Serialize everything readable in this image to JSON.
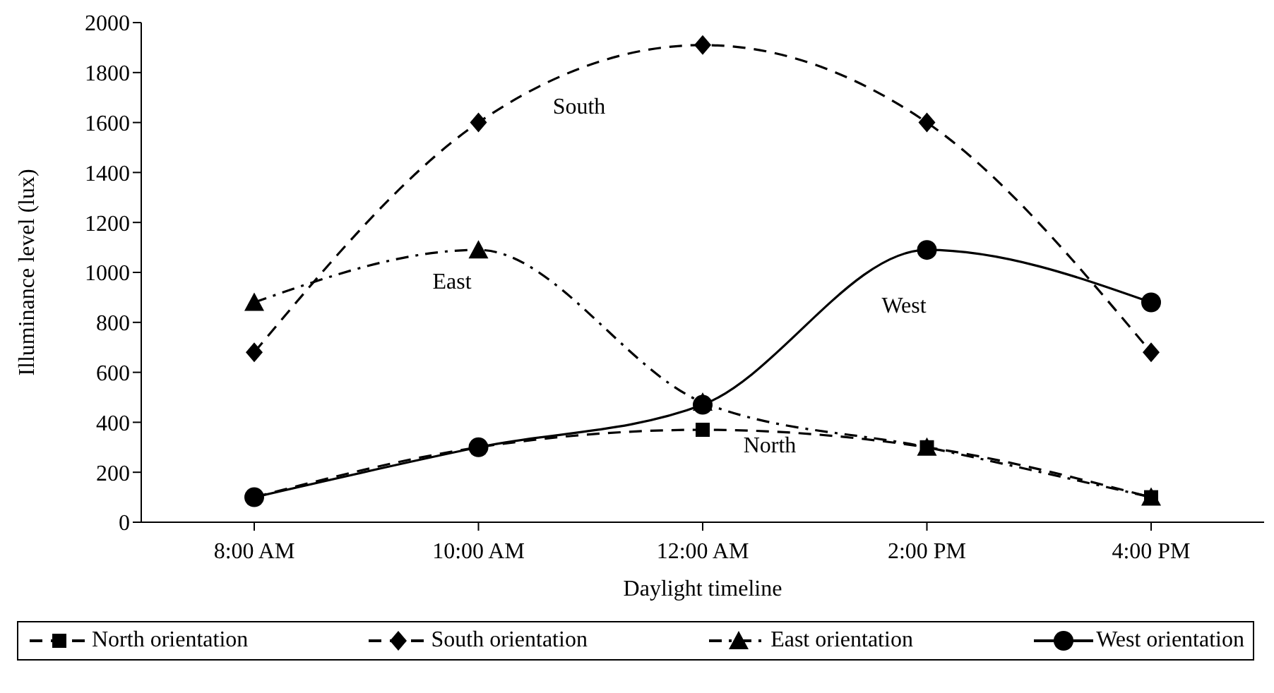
{
  "chart_data": {
    "type": "line",
    "xlabel": "Daylight timeline",
    "ylabel": "Illuminance level (lux)",
    "categories": [
      "8:00 AM",
      "10:00 AM",
      "12:00 AM",
      "2:00 PM",
      "4:00 PM"
    ],
    "series": [
      {
        "name": "North orientation",
        "color": "#000000",
        "marker": "square",
        "line_style": "dashed",
        "values": [
          100,
          300,
          370,
          300,
          100
        ]
      },
      {
        "name": "South orientation",
        "color": "#000000",
        "marker": "diamond",
        "line_style": "dashed",
        "values": [
          680,
          1600,
          1910,
          1600,
          680
        ]
      },
      {
        "name": "East orientation",
        "color": "#000000",
        "marker": "triangle",
        "line_style": "dashdot",
        "values": [
          880,
          1090,
          480,
          300,
          100
        ]
      },
      {
        "name": "West orientation",
        "color": "#000000",
        "marker": "circle",
        "line_style": "solid",
        "values": [
          100,
          300,
          470,
          1090,
          880
        ]
      }
    ],
    "annotations": [
      "South",
      "East",
      "West",
      "North"
    ],
    "ylim": [
      0,
      2000
    ],
    "yticks": [
      0,
      200,
      400,
      600,
      800,
      1000,
      1200,
      1400,
      1600,
      1800,
      2000
    ],
    "grid": false,
    "legend": "bottom"
  }
}
